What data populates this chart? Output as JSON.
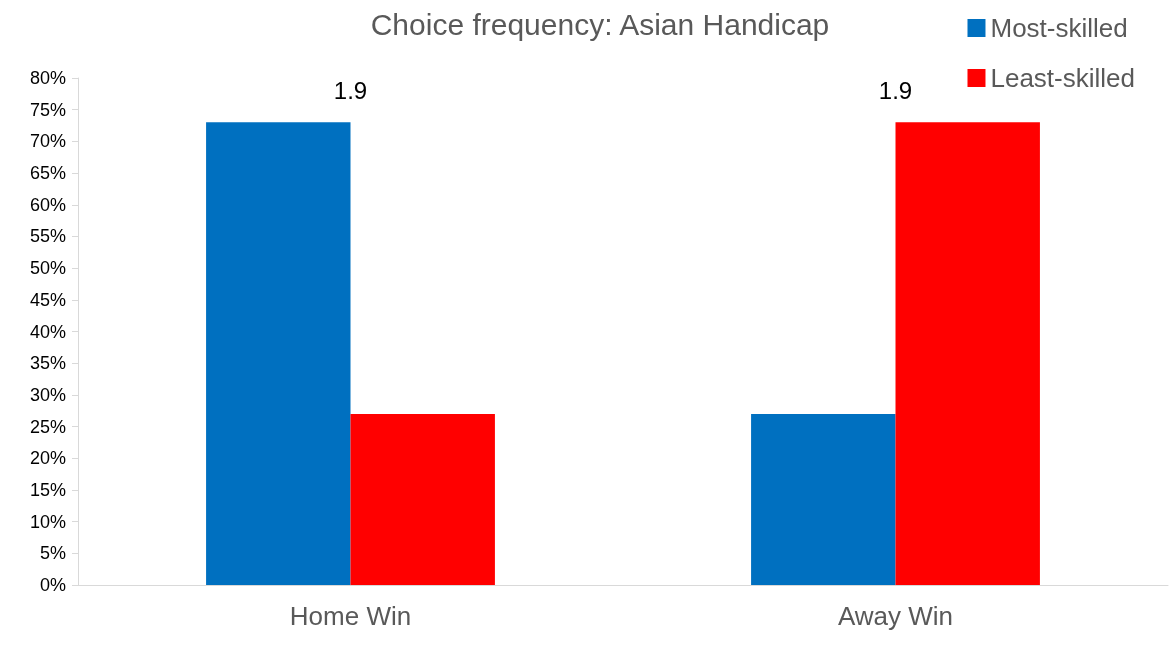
{
  "chart_data": {
    "type": "bar",
    "title": "Choice frequency: Asian Handicap",
    "categories": [
      "Home Win",
      "Away Win"
    ],
    "series": [
      {
        "name": "Most-skilled",
        "color": "#0070c0",
        "values": [
          73,
          27
        ]
      },
      {
        "name": "Least-skilled",
        "color": "#ff0000",
        "values": [
          27,
          73
        ]
      }
    ],
    "ylim": [
      0,
      80
    ],
    "yticks": [
      {
        "value": 0,
        "label": "0%"
      },
      {
        "value": 5,
        "label": "5%"
      },
      {
        "value": 10,
        "label": "10%"
      },
      {
        "value": 15,
        "label": "15%"
      },
      {
        "value": 20,
        "label": "20%"
      },
      {
        "value": 25,
        "label": "25%"
      },
      {
        "value": 30,
        "label": "30%"
      },
      {
        "value": 35,
        "label": "35%"
      },
      {
        "value": 40,
        "label": "40%"
      },
      {
        "value": 45,
        "label": "45%"
      },
      {
        "value": 50,
        "label": "50%"
      },
      {
        "value": 55,
        "label": "55%"
      },
      {
        "value": 60,
        "label": "60%"
      },
      {
        "value": 65,
        "label": "65%"
      },
      {
        "value": 70,
        "label": "70%"
      },
      {
        "value": 75,
        "label": "75%"
      },
      {
        "value": 80,
        "label": "80%"
      }
    ],
    "annotations": [
      "1.9",
      "1.9"
    ],
    "grid": false,
    "legend": "top right"
  }
}
